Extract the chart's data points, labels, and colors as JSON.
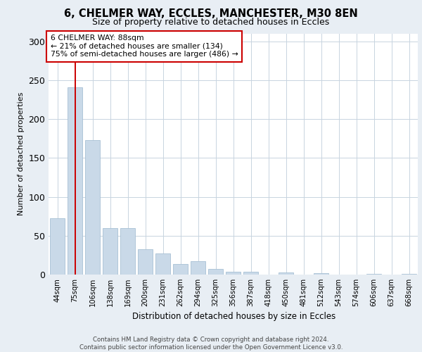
{
  "title1": "6, CHELMER WAY, ECCLES, MANCHESTER, M30 8EN",
  "title2": "Size of property relative to detached houses in Eccles",
  "xlabel": "Distribution of detached houses by size in Eccles",
  "ylabel": "Number of detached properties",
  "categories": [
    "44sqm",
    "75sqm",
    "106sqm",
    "138sqm",
    "169sqm",
    "200sqm",
    "231sqm",
    "262sqm",
    "294sqm",
    "325sqm",
    "356sqm",
    "387sqm",
    "418sqm",
    "450sqm",
    "481sqm",
    "512sqm",
    "543sqm",
    "574sqm",
    "606sqm",
    "637sqm",
    "668sqm"
  ],
  "values": [
    72,
    241,
    173,
    60,
    60,
    33,
    27,
    14,
    17,
    7,
    4,
    4,
    0,
    3,
    0,
    2,
    0,
    0,
    1,
    0,
    1
  ],
  "bar_color": "#c9d9e8",
  "bar_edge_color": "#a8c0d4",
  "vline_x": 1,
  "vline_color": "#cc0000",
  "annotation_text": "6 CHELMER WAY: 88sqm\n← 21% of detached houses are smaller (134)\n75% of semi-detached houses are larger (486) →",
  "annotation_box_color": "white",
  "annotation_box_edge_color": "#cc0000",
  "footer_text": "Contains HM Land Registry data © Crown copyright and database right 2024.\nContains public sector information licensed under the Open Government Licence v3.0.",
  "ylim": [
    0,
    310
  ],
  "yticks": [
    0,
    50,
    100,
    150,
    200,
    250,
    300
  ],
  "background_color": "#e8eef4",
  "plot_background": "#ffffff",
  "grid_color": "#c8d4e0"
}
